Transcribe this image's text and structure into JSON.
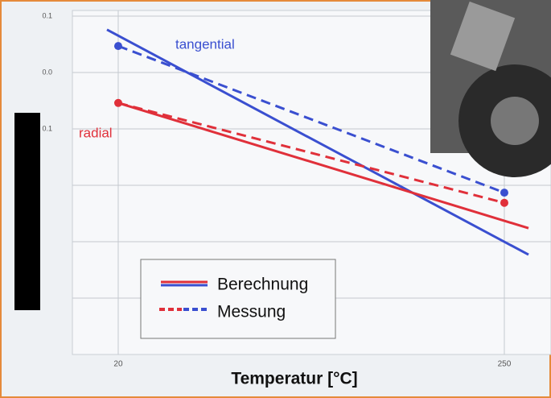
{
  "chart_data": {
    "type": "line",
    "xlabel": "Temperatur [°C]",
    "annotations": [
      {
        "text": "tangential",
        "color": "#3a4fd0"
      },
      {
        "text": "radial",
        "color": "#e0303a"
      }
    ],
    "legend": [
      "Berechnung",
      "Messung"
    ],
    "xlim": [
      -7.3,
      277.8
    ],
    "xticks": [
      20,
      250
    ],
    "ylim": [
      0,
      6.1
    ],
    "yticks": [
      {
        "value": 6,
        "label": "0.1"
      },
      {
        "value": 5,
        "label": "0.0"
      },
      {
        "value": 4,
        "label": "0.1"
      },
      {
        "value": 3,
        "label": null
      },
      {
        "value": 2,
        "label": null
      },
      {
        "value": 1,
        "label": null
      }
    ],
    "grid": true,
    "series": [
      {
        "color": "#3a4fd0",
        "style": "solid",
        "x": [
          13.3,
          264.4
        ],
        "values": [
          5.76,
          1.77
        ]
      },
      {
        "color": "#e0303a",
        "style": "solid",
        "x": [
          20,
          264.4
        ],
        "values": [
          4.46,
          2.24
        ]
      },
      {
        "color": "#3a4fd0",
        "style": "dashed",
        "x": [
          20,
          250
        ],
        "values": [
          5.47,
          2.87
        ]
      },
      {
        "color": "#e0303a",
        "style": "dashed",
        "x": [
          20,
          250
        ],
        "values": [
          4.46,
          2.69
        ]
      }
    ]
  }
}
